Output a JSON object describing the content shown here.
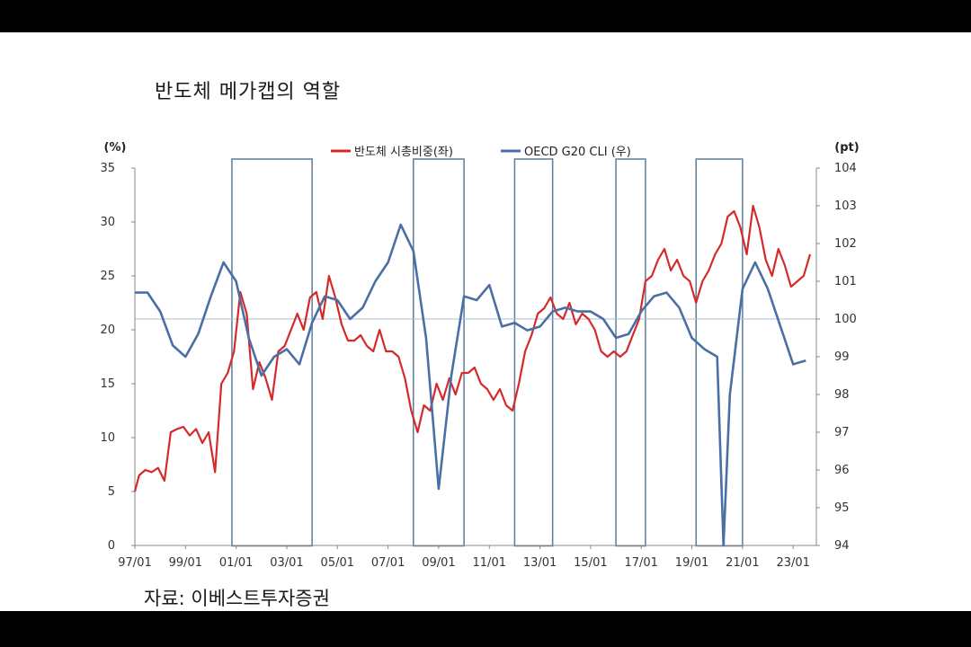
{
  "title": "반도체 메가캡의 역할",
  "source": "자료: 이베스트투자증권",
  "colors": {
    "red": "#d42a2a",
    "blue": "#4a6fa5",
    "box": "#5b7d9a",
    "ref": "#a8bfd6"
  },
  "chart_data": {
    "type": "line",
    "x_ticks": [
      "97/01",
      "99/01",
      "01/01",
      "03/01",
      "05/01",
      "07/01",
      "09/01",
      "11/01",
      "13/01",
      "15/01",
      "17/01",
      "19/01",
      "21/01",
      "23/01"
    ],
    "left_axis": {
      "unit": "(%)",
      "ylim": [
        0,
        35
      ],
      "ticks": [
        0,
        5,
        10,
        15,
        20,
        25,
        30,
        35
      ]
    },
    "right_axis": {
      "unit": "(pt)",
      "ylim": [
        94,
        104
      ],
      "ticks": [
        94,
        95,
        96,
        97,
        98,
        99,
        100,
        101,
        102,
        103,
        104
      ]
    },
    "reference_line_right": 100,
    "highlight_periods": [
      [
        "2000/11",
        "2004/01"
      ],
      [
        "2008/01",
        "2010/01"
      ],
      [
        "2012/01",
        "2013/07"
      ],
      [
        "2016/01",
        "2017/03"
      ],
      [
        "2019/03",
        "2021/01"
      ]
    ],
    "series": [
      {
        "name": "반도체 시총비중(좌)",
        "axis": "left",
        "points": [
          [
            "1997/01",
            5.0
          ],
          [
            "1997/03",
            6.5
          ],
          [
            "1997/06",
            7.0
          ],
          [
            "1997/09",
            6.8
          ],
          [
            "1997/12",
            7.2
          ],
          [
            "1998/03",
            6.0
          ],
          [
            "1998/06",
            10.5
          ],
          [
            "1998/09",
            10.8
          ],
          [
            "1998/12",
            11.0
          ],
          [
            "1999/03",
            10.2
          ],
          [
            "1999/06",
            10.8
          ],
          [
            "1999/09",
            9.5
          ],
          [
            "1999/12",
            10.5
          ],
          [
            "2000/03",
            6.8
          ],
          [
            "2000/06",
            15.0
          ],
          [
            "2000/09",
            16.0
          ],
          [
            "2000/12",
            18.0
          ],
          [
            "2001/03",
            23.5
          ],
          [
            "2001/06",
            21.5
          ],
          [
            "2001/09",
            14.5
          ],
          [
            "2001/12",
            17.0
          ],
          [
            "2002/03",
            15.5
          ],
          [
            "2002/06",
            13.5
          ],
          [
            "2002/09",
            18.0
          ],
          [
            "2002/12",
            18.5
          ],
          [
            "2003/03",
            20.0
          ],
          [
            "2003/06",
            21.5
          ],
          [
            "2003/09",
            20.0
          ],
          [
            "2003/12",
            23.0
          ],
          [
            "2004/03",
            23.5
          ],
          [
            "2004/06",
            21.0
          ],
          [
            "2004/09",
            25.0
          ],
          [
            "2004/12",
            23.0
          ],
          [
            "2005/03",
            20.5
          ],
          [
            "2005/06",
            19.0
          ],
          [
            "2005/09",
            19.0
          ],
          [
            "2005/12",
            19.5
          ],
          [
            "2006/03",
            18.5
          ],
          [
            "2006/06",
            18.0
          ],
          [
            "2006/09",
            20.0
          ],
          [
            "2006/12",
            18.0
          ],
          [
            "2007/03",
            18.0
          ],
          [
            "2007/06",
            17.5
          ],
          [
            "2007/09",
            15.5
          ],
          [
            "2007/12",
            12.5
          ],
          [
            "2008/03",
            10.5
          ],
          [
            "2008/06",
            13.0
          ],
          [
            "2008/09",
            12.5
          ],
          [
            "2008/12",
            15.0
          ],
          [
            "2009/03",
            13.5
          ],
          [
            "2009/06",
            15.5
          ],
          [
            "2009/09",
            14.0
          ],
          [
            "2009/12",
            16.0
          ],
          [
            "2010/03",
            16.0
          ],
          [
            "2010/06",
            16.5
          ],
          [
            "2010/09",
            15.0
          ],
          [
            "2010/12",
            14.5
          ],
          [
            "2011/03",
            13.5
          ],
          [
            "2011/06",
            14.5
          ],
          [
            "2011/09",
            13.0
          ],
          [
            "2011/12",
            12.5
          ],
          [
            "2012/03",
            15.0
          ],
          [
            "2012/06",
            18.0
          ],
          [
            "2012/09",
            19.5
          ],
          [
            "2012/12",
            21.5
          ],
          [
            "2013/03",
            22.0
          ],
          [
            "2013/06",
            23.0
          ],
          [
            "2013/09",
            21.5
          ],
          [
            "2013/12",
            21.0
          ],
          [
            "2014/03",
            22.5
          ],
          [
            "2014/06",
            20.5
          ],
          [
            "2014/09",
            21.5
          ],
          [
            "2014/12",
            21.0
          ],
          [
            "2015/03",
            20.0
          ],
          [
            "2015/06",
            18.0
          ],
          [
            "2015/09",
            17.5
          ],
          [
            "2015/12",
            18.0
          ],
          [
            "2016/03",
            17.5
          ],
          [
            "2016/06",
            18.0
          ],
          [
            "2016/09",
            19.5
          ],
          [
            "2016/12",
            21.0
          ],
          [
            "2017/03",
            24.5
          ],
          [
            "2017/06",
            25.0
          ],
          [
            "2017/09",
            26.5
          ],
          [
            "2017/12",
            27.5
          ],
          [
            "2018/03",
            25.5
          ],
          [
            "2018/06",
            26.5
          ],
          [
            "2018/09",
            25.0
          ],
          [
            "2018/12",
            24.5
          ],
          [
            "2019/03",
            22.5
          ],
          [
            "2019/06",
            24.5
          ],
          [
            "2019/09",
            25.5
          ],
          [
            "2019/12",
            27.0
          ],
          [
            "2020/03",
            28.0
          ],
          [
            "2020/06",
            30.5
          ],
          [
            "2020/09",
            31.0
          ],
          [
            "2020/12",
            29.5
          ],
          [
            "2021/03",
            27.0
          ],
          [
            "2021/06",
            31.5
          ],
          [
            "2021/09",
            29.5
          ],
          [
            "2021/12",
            26.5
          ],
          [
            "2022/03",
            25.0
          ],
          [
            "2022/06",
            27.5
          ],
          [
            "2022/09",
            26.0
          ],
          [
            "2022/12",
            24.0
          ],
          [
            "2023/03",
            24.5
          ],
          [
            "2023/06",
            25.0
          ],
          [
            "2023/09",
            27.0
          ]
        ]
      },
      {
        "name": "OECD G20 CLI (우)",
        "axis": "right",
        "points": [
          [
            "1997/01",
            100.7
          ],
          [
            "1997/07",
            100.7
          ],
          [
            "1998/01",
            100.2
          ],
          [
            "1998/07",
            99.3
          ],
          [
            "1999/01",
            99.0
          ],
          [
            "1999/07",
            99.6
          ],
          [
            "2000/01",
            100.6
          ],
          [
            "2000/07",
            101.5
          ],
          [
            "2001/01",
            101.0
          ],
          [
            "2001/07",
            99.5
          ],
          [
            "2002/01",
            98.5
          ],
          [
            "2002/07",
            99.0
          ],
          [
            "2003/01",
            99.2
          ],
          [
            "2003/07",
            98.8
          ],
          [
            "2004/01",
            99.9
          ],
          [
            "2004/07",
            100.6
          ],
          [
            "2005/01",
            100.5
          ],
          [
            "2005/07",
            100.0
          ],
          [
            "2006/01",
            100.3
          ],
          [
            "2006/07",
            101.0
          ],
          [
            "2007/01",
            101.5
          ],
          [
            "2007/07",
            102.5
          ],
          [
            "2008/01",
            101.8
          ],
          [
            "2008/07",
            99.5
          ],
          [
            "2009/01",
            95.5
          ],
          [
            "2009/07",
            98.5
          ],
          [
            "2010/01",
            100.6
          ],
          [
            "2010/07",
            100.5
          ],
          [
            "2011/01",
            100.9
          ],
          [
            "2011/07",
            99.8
          ],
          [
            "2012/01",
            99.9
          ],
          [
            "2012/07",
            99.7
          ],
          [
            "2013/01",
            99.8
          ],
          [
            "2013/07",
            100.2
          ],
          [
            "2014/01",
            100.3
          ],
          [
            "2014/07",
            100.2
          ],
          [
            "2015/01",
            100.2
          ],
          [
            "2015/07",
            100.0
          ],
          [
            "2016/01",
            99.5
          ],
          [
            "2016/07",
            99.6
          ],
          [
            "2017/01",
            100.2
          ],
          [
            "2017/07",
            100.6
          ],
          [
            "2018/01",
            100.7
          ],
          [
            "2018/07",
            100.3
          ],
          [
            "2019/01",
            99.5
          ],
          [
            "2019/07",
            99.2
          ],
          [
            "2020/01",
            99.0
          ],
          [
            "2020/04",
            94.0
          ],
          [
            "2020/07",
            98.0
          ],
          [
            "2021/01",
            100.8
          ],
          [
            "2021/07",
            101.5
          ],
          [
            "2022/01",
            100.8
          ],
          [
            "2022/07",
            99.8
          ],
          [
            "2023/01",
            98.8
          ],
          [
            "2023/07",
            98.9
          ]
        ]
      }
    ]
  }
}
